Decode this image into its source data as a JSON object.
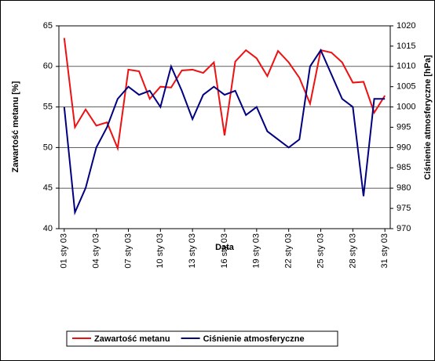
{
  "chart_data": {
    "type": "line",
    "x_label": "Data",
    "y_label": "Zawartość metanu [%]",
    "y2_label": "Ciśnienie atmosferyczne [hPa]",
    "categories": [
      "01 sty 03",
      null,
      null,
      "04 sty 03",
      null,
      null,
      "07 sty 03",
      null,
      null,
      "10 sty 03",
      null,
      null,
      "13 sty 03",
      null,
      null,
      "16 sty 03",
      null,
      null,
      "19 sty 03",
      null,
      null,
      "22 sty 03",
      null,
      null,
      "25 sty 03",
      null,
      null,
      "28 sty 03",
      null,
      null,
      "31 sty 03"
    ],
    "series": [
      {
        "name": "Zawartość metanu",
        "color": "#ee1111",
        "values": [
          63.5,
          52.5,
          54.7,
          52.7,
          53.1,
          49.9,
          59.6,
          59.4,
          56.0,
          57.5,
          57.4,
          59.5,
          59.6,
          59.2,
          60.5,
          51.5,
          60.6,
          62.0,
          61.0,
          58.8,
          61.9,
          60.5,
          58.6,
          55.4,
          62.0,
          61.7,
          60.5,
          58.0,
          58.1,
          54.3,
          56.4
        ]
      },
      {
        "name": "Ciśnienie atmosferyczne",
        "color": "#000080",
        "axis": "y2",
        "values": [
          1000,
          974,
          980,
          990,
          995,
          1002,
          1005,
          1003,
          1004,
          1000,
          1010,
          1004,
          997,
          1003,
          1005,
          1003,
          1004,
          998,
          1000,
          994,
          992,
          990,
          992,
          1010,
          1014,
          1008,
          1002,
          1000,
          978,
          1002,
          1002
        ]
      }
    ],
    "ylim": [
      40,
      65
    ],
    "yticks": [
      40,
      45,
      50,
      55,
      60,
      65
    ],
    "y2lim": [
      970,
      1020
    ],
    "y2ticks": [
      970,
      975,
      980,
      985,
      990,
      995,
      1000,
      1005,
      1010,
      1015,
      1020
    ],
    "grid": true,
    "legend": "bottom"
  }
}
